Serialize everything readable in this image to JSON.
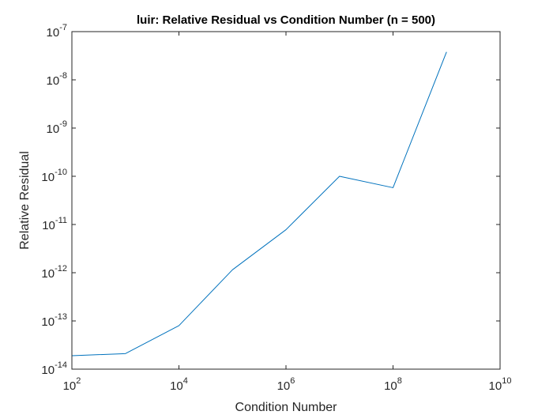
{
  "chart_data": {
    "type": "line",
    "title": "luir: Relative Residual vs Condition Number (n = 500)",
    "xlabel": "Condition Number",
    "ylabel": "Relative Residual",
    "xscale": "log",
    "yscale": "log",
    "xlim": [
      100,
      10000000000
    ],
    "ylim": [
      1e-14,
      1e-07
    ],
    "xticks": [
      {
        "base": "10",
        "exp": "2"
      },
      {
        "base": "10",
        "exp": "4"
      },
      {
        "base": "10",
        "exp": "6"
      },
      {
        "base": "10",
        "exp": "8"
      },
      {
        "base": "10",
        "exp": "10"
      }
    ],
    "yticks": [
      {
        "base": "10",
        "exp": "-14"
      },
      {
        "base": "10",
        "exp": "-13"
      },
      {
        "base": "10",
        "exp": "-12"
      },
      {
        "base": "10",
        "exp": "-11"
      },
      {
        "base": "10",
        "exp": "-10"
      },
      {
        "base": "10",
        "exp": "-9"
      },
      {
        "base": "10",
        "exp": "-8"
      },
      {
        "base": "10",
        "exp": "-7"
      }
    ],
    "grid": false,
    "box": true,
    "series": [
      {
        "color": "#0072bd",
        "x": [
          100,
          1000,
          10000,
          100000,
          1000000,
          10000000,
          100000000,
          1000000000
        ],
        "y": [
          1.9e-14,
          2.1e-14,
          8e-14,
          1.15e-12,
          7.8e-12,
          1e-10,
          5.8e-11,
          3.8e-08
        ]
      }
    ]
  }
}
